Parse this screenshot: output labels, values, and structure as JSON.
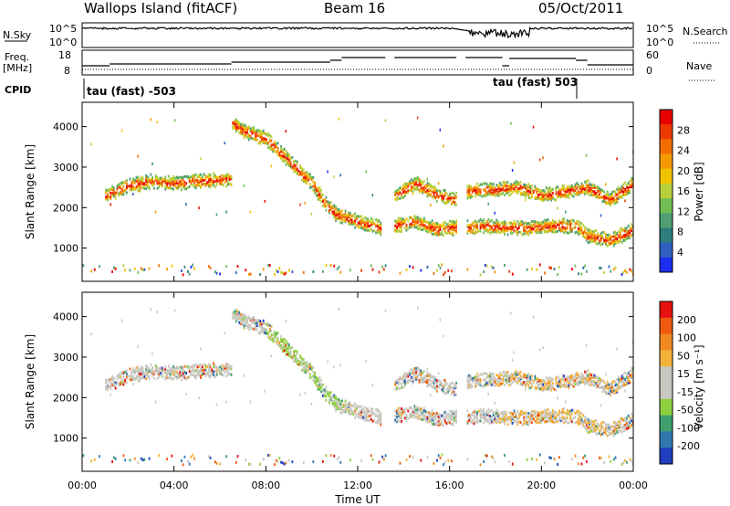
{
  "header": {
    "station": "Wallops Island (fitACF)",
    "beam": "Beam 16",
    "date": "05/Oct/2011"
  },
  "top_panels": {
    "nsky_label": "N.Sky",
    "nsearch_label": "N.Search",
    "noise_ticks": [
      "10^5",
      "10^0"
    ],
    "freq_label": "Freq.",
    "freq_unit": "[MHz]",
    "freq_ticks": [
      "18",
      "8"
    ],
    "nave_label": "Nave",
    "nave_ticks": [
      "60",
      "0"
    ],
    "cpid_label": "CPID",
    "cpid_left": "tau (fast) -503",
    "cpid_right": "tau (fast) 503"
  },
  "chart_data": [
    {
      "type": "heatmap",
      "ylabel": "Slant Range [km]",
      "xlabel": "Time UT",
      "x_ticks": [
        "00:00",
        "04:00",
        "08:00",
        "12:00",
        "16:00",
        "20:00",
        "00:00"
      ],
      "y_ticks": [
        1000,
        2000,
        3000,
        4000
      ],
      "ylim": [
        180,
        4600
      ],
      "xlim_hours": [
        0,
        24
      ],
      "colorbar": {
        "label": "Power [dB]",
        "ticks": [
          4,
          8,
          12,
          16,
          20,
          24,
          28
        ],
        "colors": [
          "#1e2ef0",
          "#2f5fbf",
          "#2d7e7e",
          "#4f9f72",
          "#73bd52",
          "#b8cf3a",
          "#f2c400",
          "#f49a00",
          "#f26d00",
          "#ee3a00",
          "#e80000"
        ]
      }
    },
    {
      "type": "heatmap",
      "ylabel": "Slant Range [km]",
      "xlabel": "Time UT",
      "x_ticks": [
        "00:00",
        "04:00",
        "08:00",
        "12:00",
        "16:00",
        "20:00",
        "00:00"
      ],
      "y_ticks": [
        1000,
        2000,
        3000,
        4000
      ],
      "ylim": [
        180,
        4600
      ],
      "xlim_hours": [
        0,
        24
      ],
      "colorbar": {
        "label": "Velocity [m s⁻¹]",
        "ticks": [
          200,
          100,
          50,
          15,
          -15,
          -50,
          -100,
          -200
        ],
        "colors": [
          "#1f3fbf",
          "#2f79b0",
          "#3f9f6f",
          "#8ecf3f",
          "#c8c8c0",
          "#c8c8c0",
          "#f2b23a",
          "#f08a20",
          "#ef5a10",
          "#e81010"
        ]
      }
    }
  ],
  "echo_bands": [
    {
      "t": [
        1.0,
        2.0,
        3.0,
        4.0,
        5.0,
        6.5
      ],
      "r": [
        2300,
        2550,
        2650,
        2600,
        2650,
        2700
      ]
    },
    {
      "t": [
        6.5,
        7.0,
        8.0,
        9.0,
        10.0,
        10.5,
        11.0,
        12.0,
        13.0
      ],
      "r": [
        4100,
        3900,
        3700,
        3150,
        2600,
        2150,
        1850,
        1650,
        1500
      ]
    },
    {
      "t": [
        13.6,
        14.0,
        14.5,
        15.0,
        15.5,
        16.0,
        16.3
      ],
      "r": [
        1550,
        1600,
        1650,
        1550,
        1450,
        1500,
        1500
      ]
    },
    {
      "t": [
        13.6,
        14.5,
        15.5,
        16.3
      ],
      "r": [
        2300,
        2600,
        2300,
        2200
      ]
    },
    {
      "t": [
        16.7,
        17.5,
        18.5,
        19.5,
        20.5,
        21.5,
        22.0,
        23.0,
        24.0
      ],
      "r": [
        1500,
        1550,
        1500,
        1500,
        1550,
        1550,
        1300,
        1200,
        1450
      ]
    },
    {
      "t": [
        16.7,
        18.0,
        19.0,
        20.0,
        21.0,
        22.0,
        23.0,
        24.0
      ],
      "r": [
        2400,
        2450,
        2500,
        2300,
        2400,
        2500,
        2200,
        2600
      ]
    }
  ]
}
